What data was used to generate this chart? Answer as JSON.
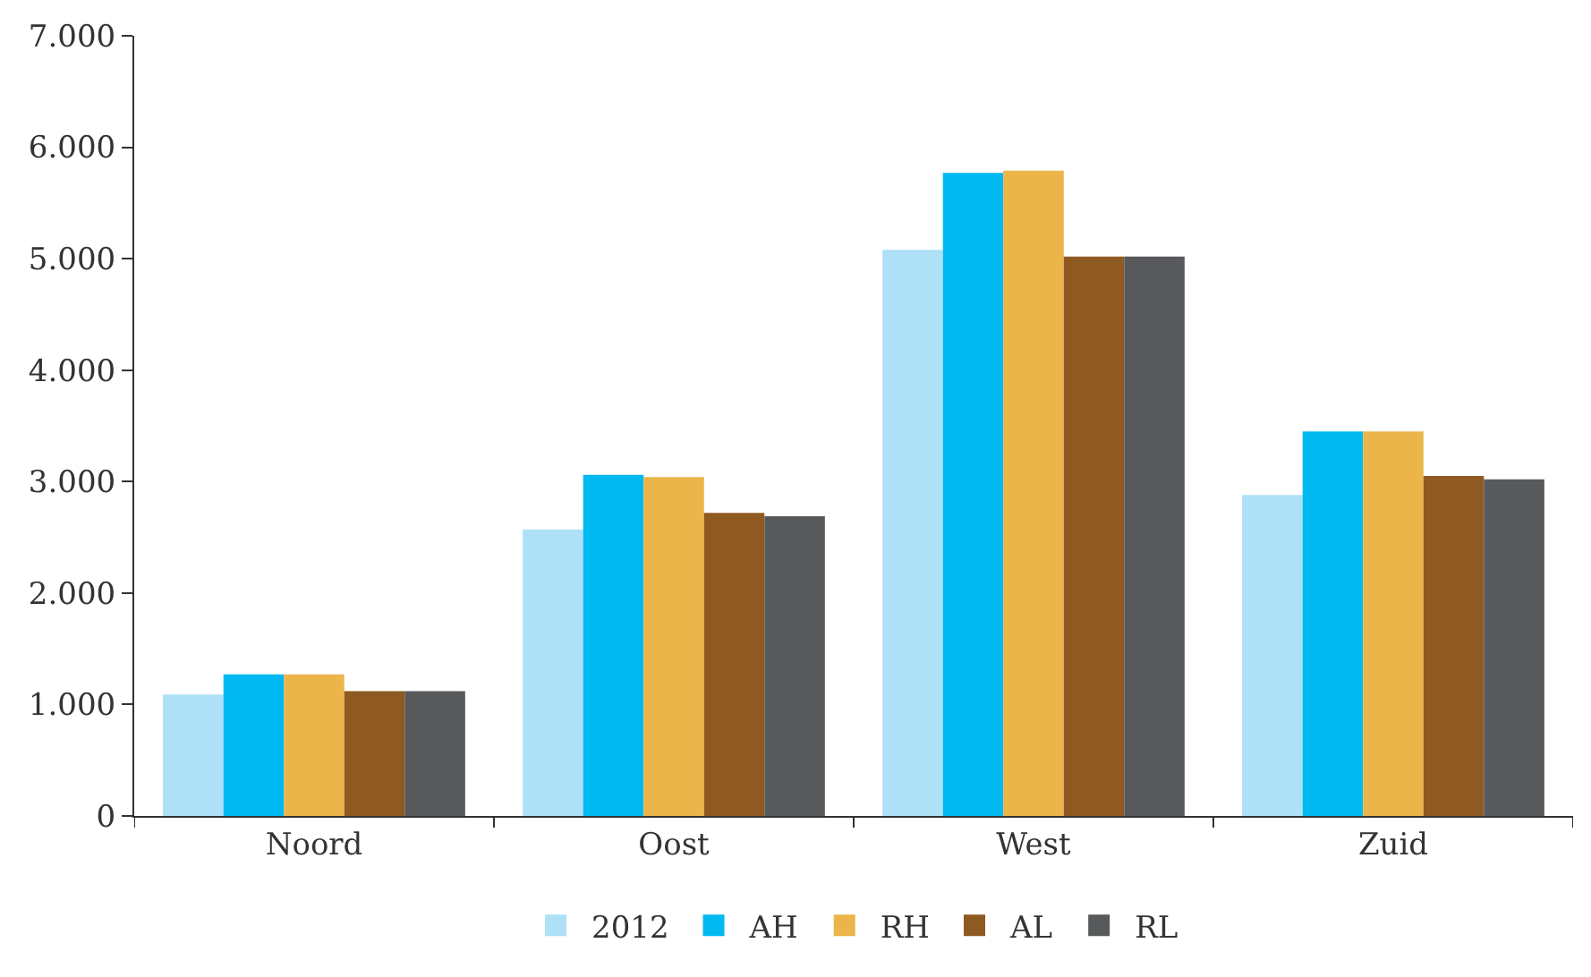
{
  "chart_data": {
    "type": "bar",
    "categories": [
      "Noord",
      "Oost",
      "West",
      "Zuid"
    ],
    "series": [
      {
        "name": "2012",
        "color": "#aee0f8",
        "values": [
          1090,
          2570,
          5080,
          2880
        ]
      },
      {
        "name": "AH",
        "color": "#00b9f1",
        "values": [
          1270,
          3060,
          5770,
          3450
        ]
      },
      {
        "name": "RH",
        "color": "#ebb54a",
        "values": [
          1270,
          3040,
          5790,
          3450
        ]
      },
      {
        "name": "AL",
        "color": "#8f5a22",
        "values": [
          1120,
          2720,
          5020,
          3050
        ]
      },
      {
        "name": "RL",
        "color": "#58595b",
        "values": [
          1120,
          2690,
          5020,
          3020
        ]
      }
    ],
    "ylim": [
      0,
      7000
    ],
    "yticks": [
      0,
      {
        "value": 1000,
        "label": "1.000"
      },
      {
        "value": 2000,
        "label": "2.000"
      },
      {
        "value": 3000,
        "label": "3.000"
      },
      {
        "value": 4000,
        "label": "4.000"
      },
      {
        "value": 5000,
        "label": "5.000"
      },
      {
        "value": 6000,
        "label": "6.000"
      },
      {
        "value": 7000,
        "label": "7.000"
      }
    ],
    "grid": false,
    "legend": "bottom"
  }
}
